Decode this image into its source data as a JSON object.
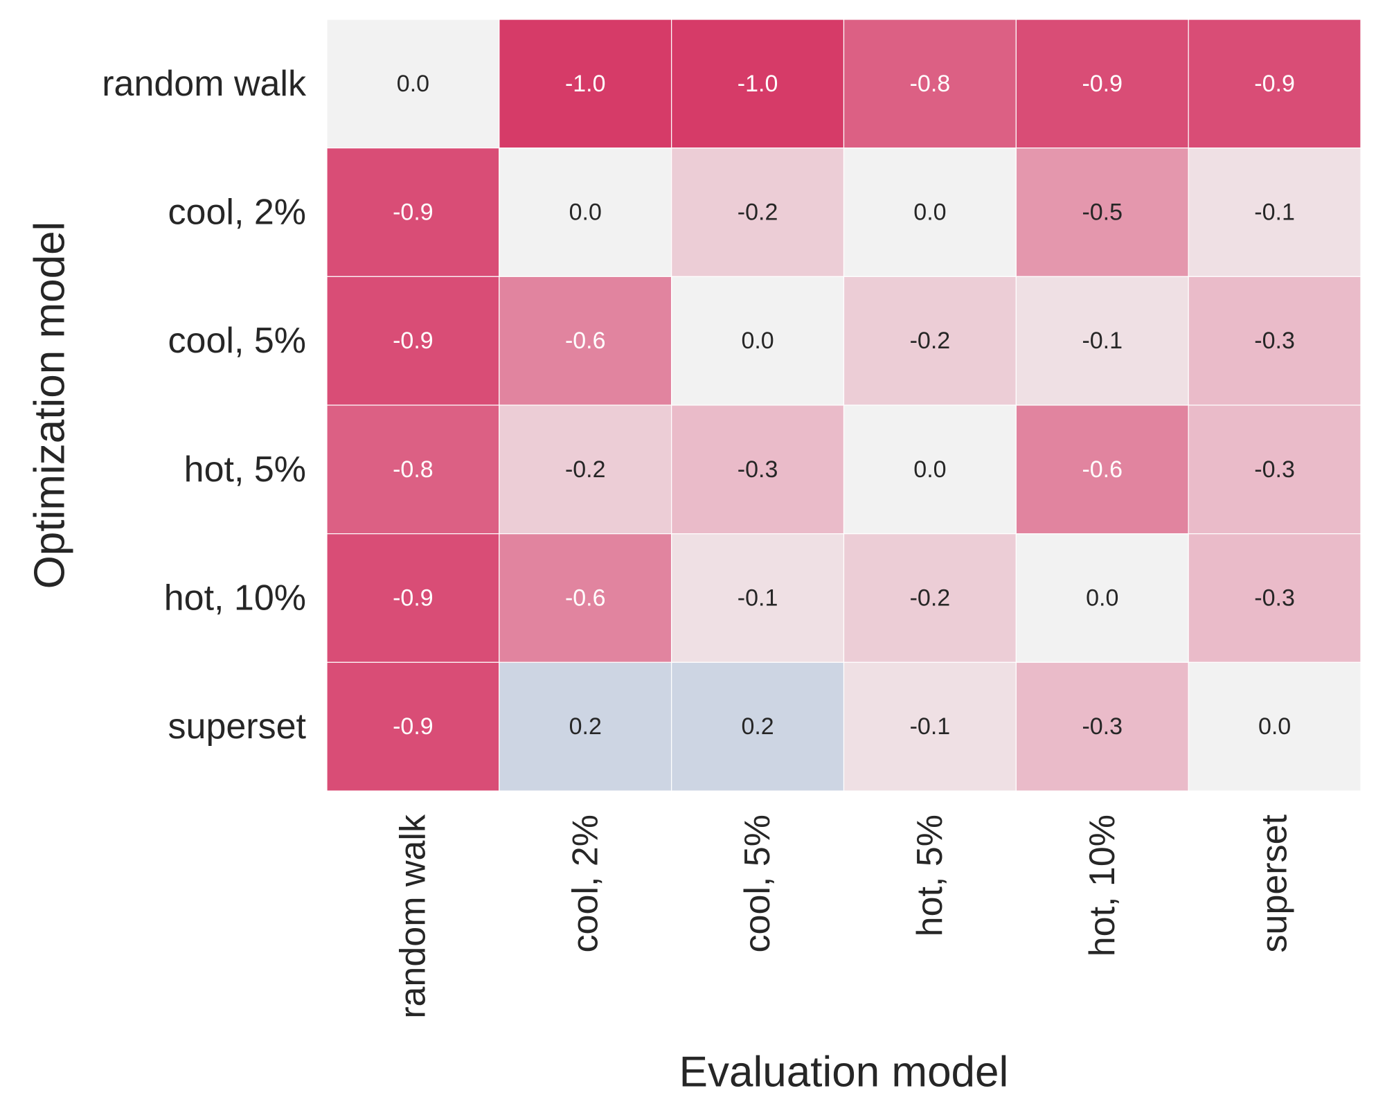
{
  "chart_data": {
    "type": "heatmap",
    "xlabel": "Evaluation model",
    "ylabel": "Optimization model",
    "x_categories": [
      "random walk",
      "cool, 2%",
      "cool, 5%",
      "hot, 5%",
      "hot, 10%",
      "superset"
    ],
    "y_categories": [
      "random walk",
      "cool, 2%",
      "cool, 5%",
      "hot, 5%",
      "hot, 10%",
      "superset"
    ],
    "values": [
      [
        0.0,
        -1.0,
        -1.0,
        -0.8,
        -0.9,
        -0.9
      ],
      [
        -0.9,
        0.0,
        -0.2,
        0.0,
        -0.5,
        -0.1
      ],
      [
        -0.9,
        -0.6,
        0.0,
        -0.2,
        -0.1,
        -0.3
      ],
      [
        -0.8,
        -0.2,
        -0.3,
        0.0,
        -0.6,
        -0.3
      ],
      [
        -0.9,
        -0.6,
        -0.1,
        -0.2,
        0.0,
        -0.3
      ],
      [
        -0.9,
        0.2,
        0.2,
        -0.1,
        -0.3,
        0.0
      ]
    ],
    "value_labels": [
      [
        "0.0",
        "-1.0",
        "-1.0",
        "-0.8",
        "-0.9",
        "-0.9"
      ],
      [
        "-0.9",
        "0.0",
        "-0.2",
        "0.0",
        "-0.5",
        "-0.1"
      ],
      [
        "-0.9",
        "-0.6",
        "0.0",
        "-0.2",
        "-0.1",
        "-0.3"
      ],
      [
        "-0.8",
        "-0.2",
        "-0.3",
        "0.0",
        "-0.6",
        "-0.3"
      ],
      [
        "-0.9",
        "-0.6",
        "-0.1",
        "-0.2",
        "0.0",
        "-0.3"
      ],
      [
        "-0.9",
        "0.2",
        "0.2",
        "-0.1",
        "-0.3",
        "0.0"
      ]
    ],
    "colorscale": {
      "type": "diverging",
      "center": 0.0,
      "vmin": -1.0,
      "vmax": 1.0,
      "negative_color": "#d63b68",
      "center_color": "#f2f2f2",
      "positive_color": "#3b5fa8"
    },
    "grid": false,
    "colorbar": false
  }
}
